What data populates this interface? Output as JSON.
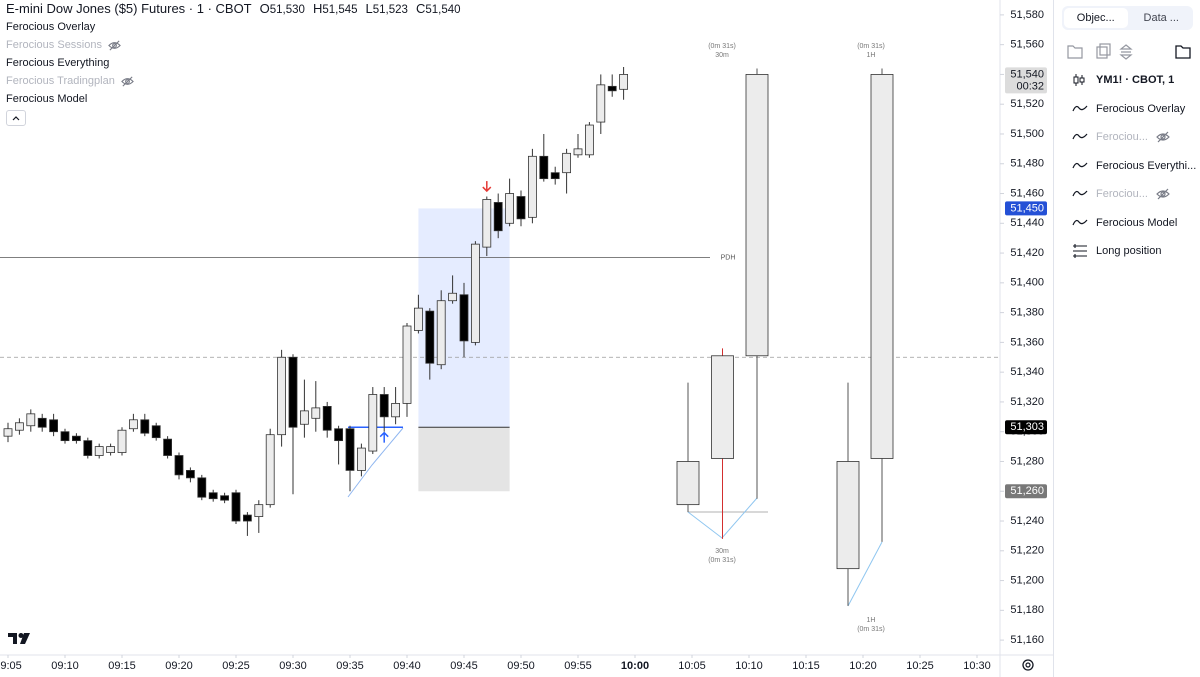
{
  "header": {
    "title": "E-mini Dow Jones ($5) Futures · 1 · CBOT",
    "ohlc": [
      {
        "key": "O",
        "value": "51,530"
      },
      {
        "key": "H",
        "value": "51,545"
      },
      {
        "key": "L",
        "value": "51,523"
      },
      {
        "key": "C",
        "value": "51,540"
      }
    ]
  },
  "legend": [
    {
      "name": "Ferocious Overlay",
      "hidden": false
    },
    {
      "name": "Ferocious Sessions",
      "hidden": true
    },
    {
      "name": "Ferocious Everything",
      "hidden": false
    },
    {
      "name": "Ferocious Tradingplan",
      "hidden": true
    },
    {
      "name": "Ferocious Model",
      "hidden": false
    }
  ],
  "sidebar": {
    "tabs": [
      "Objec...",
      "Data ..."
    ],
    "items": [
      {
        "name": "YM1! · CBOT, 1",
        "icon": "candle",
        "hidden": false
      },
      {
        "name": "Ferocious Overlay",
        "icon": "wave",
        "hidden": false
      },
      {
        "name": "Ferociou...",
        "icon": "wave",
        "hidden": true
      },
      {
        "name": "Ferocious Everythi...",
        "icon": "wave",
        "hidden": false
      },
      {
        "name": "Ferociou...",
        "icon": "wave",
        "hidden": true
      },
      {
        "name": "Ferocious Model",
        "icon": "wave",
        "hidden": false
      },
      {
        "name": "Long position",
        "icon": "position",
        "hidden": false
      }
    ]
  },
  "chart_data": {
    "type": "candlestick",
    "x": [
      "09:05",
      "09:06",
      "09:07",
      "09:08",
      "09:09",
      "09:10",
      "09:11",
      "09:12",
      "09:13",
      "09:14",
      "09:15",
      "09:16",
      "09:17",
      "09:18",
      "09:19",
      "09:20",
      "09:21",
      "09:22",
      "09:23",
      "09:24",
      "09:25",
      "09:26",
      "09:27",
      "09:28",
      "09:29",
      "09:30",
      "09:31",
      "09:32",
      "09:33",
      "09:34",
      "09:35",
      "09:36",
      "09:37",
      "09:38",
      "09:39",
      "09:40",
      "09:41",
      "09:42",
      "09:43",
      "09:44",
      "09:45",
      "09:46",
      "09:47",
      "09:48",
      "09:49",
      "09:50",
      "09:51",
      "09:52",
      "09:53",
      "09:54",
      "09:55",
      "09:56",
      "09:57",
      "09:58",
      "09:59"
    ],
    "open": [
      51297,
      51301,
      51304,
      51309,
      51308,
      51300,
      51297,
      51294,
      51284,
      51286,
      51286,
      51302,
      51308,
      51304,
      51295,
      51284,
      51274,
      51269,
      51259,
      51257,
      51259,
      51244,
      51243,
      51251,
      51298,
      51350,
      51305,
      51309,
      51317,
      51302,
      51302,
      51274,
      51287,
      51325,
      51310,
      51319,
      51368,
      51381,
      51345,
      51388,
      51392,
      51360,
      51424,
      51454,
      51440,
      51458,
      51444,
      51485,
      51474,
      51474,
      51486,
      51486,
      51508,
      51532,
      51530
    ],
    "high": [
      51306,
      51309,
      51315,
      51312,
      51312,
      51302,
      51299,
      51296,
      51292,
      51292,
      51303,
      51312,
      51312,
      51306,
      51297,
      51286,
      51276,
      51271,
      51261,
      51259,
      51261,
      51246,
      51254,
      51302,
      51355,
      51352,
      51335,
      51334,
      51320,
      51304,
      51304,
      51292,
      51330,
      51330,
      51330,
      51373,
      51392,
      51383,
      51395,
      51405,
      51400,
      51428,
      51458,
      51460,
      51470,
      51462,
      51490,
      51500,
      51478,
      51490,
      51500,
      51508,
      51540,
      51540,
      51545
    ],
    "low": [
      51293,
      51298,
      51300,
      51300,
      51297,
      51292,
      51292,
      51282,
      51282,
      51284,
      51284,
      51300,
      51297,
      51294,
      51282,
      51268,
      51266,
      51254,
      51253,
      51252,
      51238,
      51230,
      51232,
      51249,
      51290,
      51258,
      51296,
      51300,
      51296,
      51278,
      51260,
      51270,
      51285,
      51300,
      51305,
      51310,
      51366,
      51335,
      51342,
      51386,
      51350,
      51358,
      51418,
      51430,
      51438,
      51438,
      51440,
      51468,
      51466,
      51460,
      51484,
      51484,
      51500,
      51525,
      51523
    ],
    "close": [
      51302,
      51306,
      51312,
      51303,
      51300,
      51294,
      51294,
      51284,
      51290,
      51290,
      51301,
      51308,
      51299,
      51296,
      51284,
      51271,
      51269,
      51256,
      51255,
      51254,
      51240,
      51240,
      51251,
      51298,
      51350,
      51303,
      51314,
      51316,
      51301,
      51294,
      51274,
      51289,
      51325,
      51310,
      51319,
      51371,
      51383,
      51346,
      51388,
      51393,
      51361,
      51426,
      51456,
      51435,
      51460,
      51443,
      51485,
      51470,
      51470,
      51487,
      51490,
      51506,
      51533,
      51529,
      51540
    ],
    "up_color": "#ececec",
    "down_color": "#000000",
    "ylim": [
      51150,
      51590
    ],
    "yticks": [
      {
        "value": 51580,
        "label": "51,580"
      },
      {
        "value": 51560,
        "label": "51,560"
      },
      {
        "value": 51540,
        "label": "51,540"
      },
      {
        "value": 51520,
        "label": "51,520"
      },
      {
        "value": 51500,
        "label": "51,500"
      },
      {
        "value": 51480,
        "label": "51,480"
      },
      {
        "value": 51460,
        "label": "51,460"
      },
      {
        "value": 51440,
        "label": "51,440"
      },
      {
        "value": 51420,
        "label": "51,420"
      },
      {
        "value": 51400,
        "label": "51,400"
      },
      {
        "value": 51380,
        "label": "51,380"
      },
      {
        "value": 51360,
        "label": "51,360"
      },
      {
        "value": 51340,
        "label": "51,340"
      },
      {
        "value": 51320,
        "label": "51,320"
      },
      {
        "value": 51300,
        "label": "51,300"
      },
      {
        "value": 51280,
        "label": "51,280"
      },
      {
        "value": 51260,
        "label": "51,260"
      },
      {
        "value": 51240,
        "label": "51,240"
      },
      {
        "value": 51220,
        "label": "51,220"
      },
      {
        "value": 51200,
        "label": "51,200"
      },
      {
        "value": 51180,
        "label": "51,180"
      },
      {
        "value": 51160,
        "label": "51,160"
      }
    ],
    "xticks": [
      "09:05",
      "09:10",
      "09:15",
      "09:20",
      "09:25",
      "09:30",
      "09:35",
      "09:40",
      "09:45",
      "09:50",
      "09:55",
      "10:00",
      "10:05",
      "10:10",
      "10:15",
      "10:20",
      "10:25",
      "10:30"
    ],
    "levels": [
      {
        "label": "PDH",
        "value": 51417,
        "style": "solid"
      },
      {
        "value": 51350,
        "style": "dashed"
      }
    ],
    "position": {
      "start": "09:41",
      "end": "09:49",
      "target": 51450,
      "entry": 51303,
      "stop": 51260
    },
    "arrows": [
      {
        "x": "09:47",
        "value": 51465,
        "direction": "down",
        "color": "#e53935"
      },
      {
        "x": "09:38",
        "value": 51296,
        "direction": "up",
        "color": "#2962ff"
      }
    ],
    "htf": [
      {
        "label": "30m",
        "timer": "(0m 31s)",
        "candles": [
          {
            "open": 51251,
            "high": 51333,
            "low": 51246,
            "close": 51280
          },
          {
            "open": 51282,
            "high": 51356,
            "low": 51228,
            "close": 51351
          },
          {
            "open": 51351,
            "high": 51544,
            "low": 51255,
            "close": 51540
          }
        ]
      },
      {
        "label": "1H",
        "timer": "(0m 31s)",
        "candles": [
          {
            "open": 51208,
            "high": 51333,
            "low": 51183,
            "close": 51280
          },
          {
            "open": 51282,
            "high": 51544,
            "low": 51226,
            "close": 51540
          }
        ]
      }
    ],
    "price_labels": [
      {
        "value": 51540,
        "label": "51,540",
        "timer": "00:32",
        "bg": "#dcdcdc",
        "fg": "#131722"
      },
      {
        "value": 51450,
        "label": "51,450",
        "bg": "#2450d6",
        "fg": "#ffffff"
      },
      {
        "value": 51303,
        "label": "51,303",
        "bg": "#000000",
        "fg": "#ffffff"
      },
      {
        "value": 51260,
        "label": "51,260",
        "bg": "#787878",
        "fg": "#ffffff"
      }
    ]
  }
}
